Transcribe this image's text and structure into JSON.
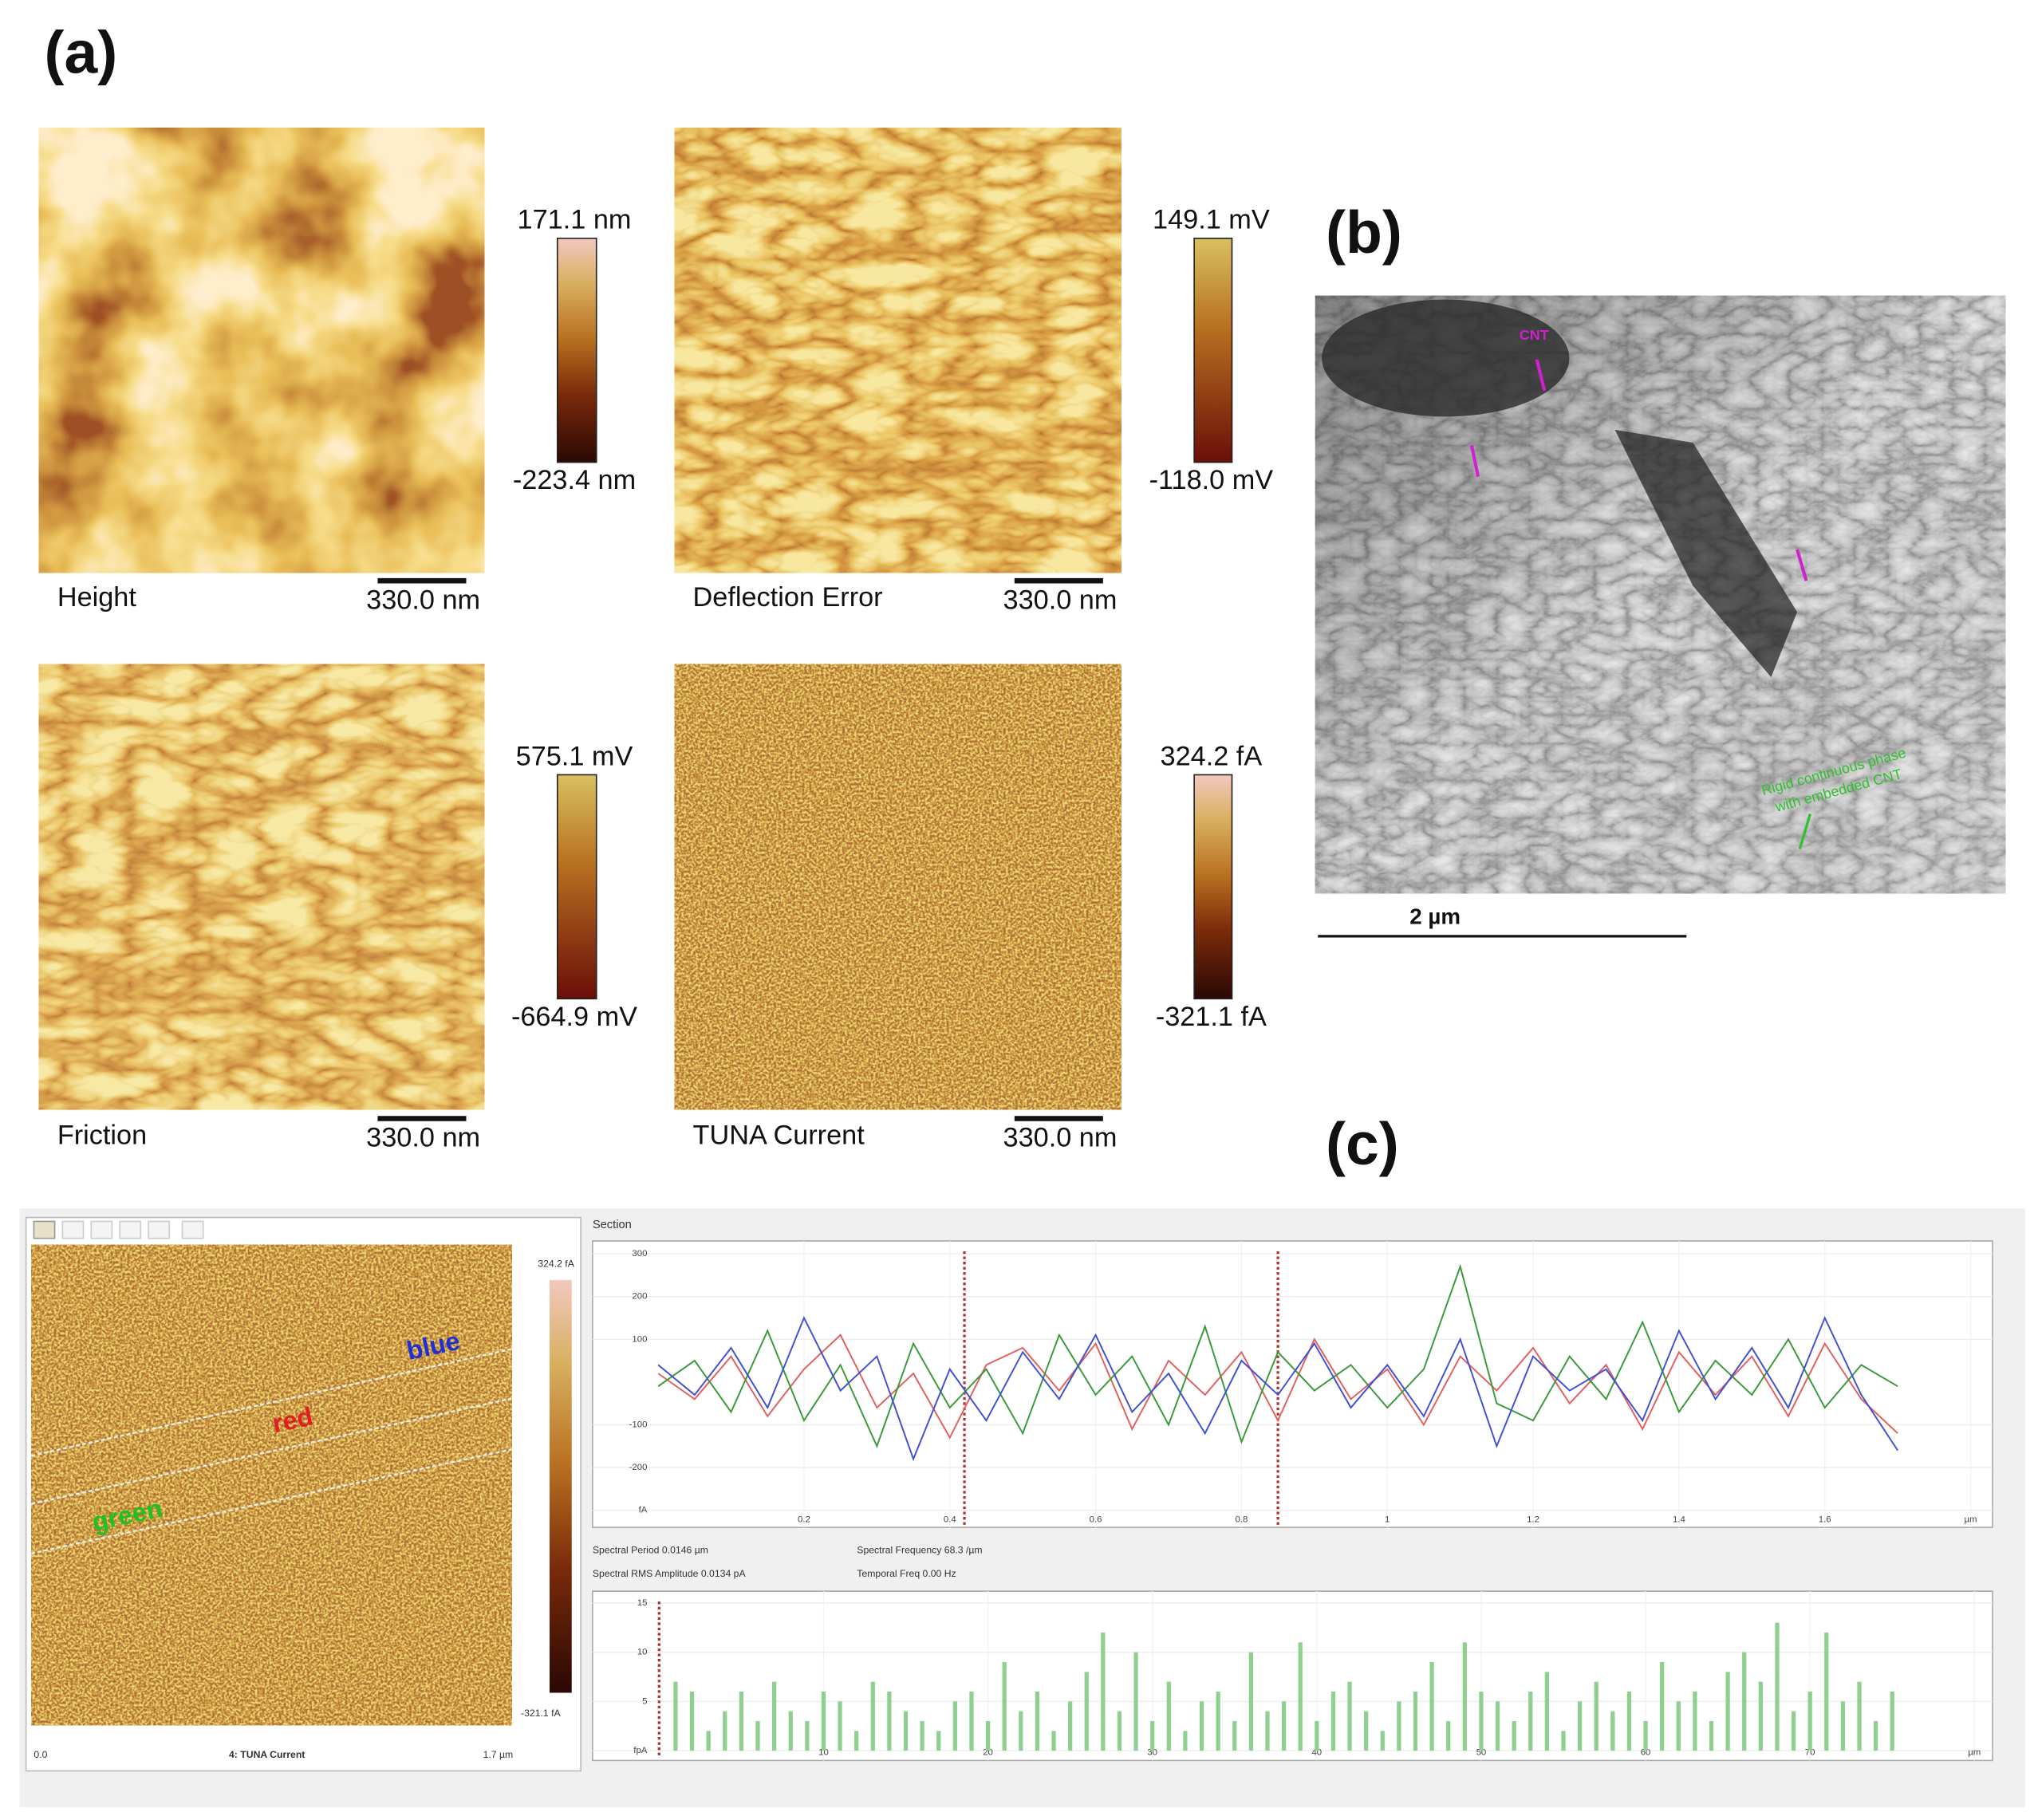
{
  "panel_labels": [
    "(a)",
    "(b)",
    "(c)"
  ],
  "afm_maps": [
    {
      "name": "Height",
      "max": "171.1 nm",
      "min": "-223.4 nm",
      "scale": "330.0 nm"
    },
    {
      "name": "Deflection Error",
      "max": "149.1 mV",
      "min": "-118.0 mV",
      "scale": "330.0 nm"
    },
    {
      "name": "Friction",
      "max": "575.1 mV",
      "min": "-664.9 mV",
      "scale": "330.0 nm"
    },
    {
      "name": "TUNA Current",
      "max": "324.2 fA",
      "min": "-321.1 fA",
      "scale": "330.0 nm"
    }
  ],
  "sem": {
    "annotations": [
      "CNT",
      "Rigid continuous phase",
      "with embedded CNT"
    ],
    "scale": "2 µm"
  },
  "tuna_view": {
    "colorbar_max": "324.2 fA",
    "colorbar_min": "-321.1 fA",
    "profile_labels": [
      "blue",
      "red",
      "green"
    ],
    "x_start": "0.0",
    "title": "4: TUNA Current",
    "x_end": "1.7 µm"
  },
  "section_title": "Section",
  "spectral_info": [
    "Spectral Period 0.0146 µm",
    "Spectral Frequency 68.3 /µm",
    "Spectral RMS Amplitude 0.0134 pA",
    "Temporal Freq 0.00 Hz"
  ],
  "chart_data": [
    {
      "type": "line",
      "x": [
        0,
        0.05,
        0.1,
        0.15,
        0.2,
        0.25,
        0.3,
        0.35,
        0.4,
        0.45,
        0.5,
        0.55,
        0.6,
        0.65,
        0.7,
        0.75,
        0.8,
        0.85,
        0.9,
        0.95,
        1.0,
        1.05,
        1.1,
        1.15,
        1.2,
        1.25,
        1.3,
        1.35,
        1.4,
        1.45,
        1.5,
        1.55,
        1.6,
        1.65,
        1.7
      ],
      "series": [
        {
          "color": "#e06060",
          "values": [
            20,
            -40,
            60,
            -80,
            30,
            110,
            -60,
            20,
            -130,
            40,
            80,
            -20,
            90,
            -110,
            50,
            -30,
            70,
            -90,
            100,
            -40,
            30,
            -100,
            60,
            -20,
            80,
            -50,
            40,
            -110,
            70,
            -30,
            60,
            -80,
            90,
            -40,
            -120
          ]
        },
        {
          "color": "#3a9a3a",
          "values": [
            -10,
            50,
            -70,
            120,
            -90,
            40,
            -150,
            90,
            -60,
            30,
            -120,
            110,
            -30,
            60,
            -100,
            130,
            -140,
            70,
            -20,
            40,
            -60,
            30,
            270,
            -50,
            -90,
            60,
            -40,
            140,
            -70,
            50,
            -30,
            100,
            -60,
            40,
            -10
          ]
        },
        {
          "color": "#4050d0",
          "values": [
            40,
            -30,
            80,
            -60,
            150,
            -20,
            60,
            -180,
            30,
            -90,
            70,
            -40,
            110,
            -70,
            20,
            -120,
            50,
            -30,
            90,
            -60,
            40,
            -80,
            100,
            -150,
            60,
            -20,
            30,
            -90,
            120,
            -40,
            80,
            -60,
            150,
            -30,
            -160
          ]
        }
      ],
      "cursors": [
        0.42,
        0.85
      ],
      "xlim": [
        -0.09,
        1.83
      ],
      "ylim": [
        -340,
        330
      ],
      "xticks": [
        0.2,
        0.4,
        0.6,
        0.8,
        1,
        1.2,
        1.4,
        1.6,
        {
          "value": 1.8,
          "label": "µm"
        }
      ],
      "yticks": [
        {
          "value": -300,
          "label": "fA"
        },
        -200,
        -100,
        100,
        200,
        300
      ],
      "grid": true
    },
    {
      "type": "bar",
      "x": [
        1,
        2,
        3,
        4,
        5,
        6,
        7,
        8,
        9,
        10,
        11,
        12,
        13,
        14,
        15,
        16,
        17,
        18,
        19,
        20,
        21,
        22,
        23,
        24,
        25,
        26,
        27,
        28,
        29,
        30,
        31,
        32,
        33,
        34,
        35,
        36,
        37,
        38,
        39,
        40,
        41,
        42,
        43,
        44,
        45,
        46,
        47,
        48,
        49,
        50,
        51,
        52,
        53,
        54,
        55,
        56,
        57,
        58,
        59,
        60,
        61,
        62,
        63,
        64,
        65,
        66,
        67,
        68,
        69,
        70,
        71,
        72,
        73,
        74,
        75
      ],
      "values": [
        7,
        6,
        2,
        4,
        6,
        3,
        7,
        4,
        3,
        6,
        5,
        2,
        7,
        6,
        4,
        3,
        2,
        5,
        6,
        3,
        9,
        4,
        6,
        2,
        5,
        8,
        12,
        4,
        10,
        3,
        7,
        2,
        5,
        6,
        3,
        10,
        4,
        5,
        11,
        3,
        6,
        7,
        4,
        2,
        5,
        6,
        9,
        3,
        11,
        6,
        5,
        3,
        6,
        8,
        2,
        5,
        7,
        4,
        6,
        3,
        9,
        5,
        6,
        3,
        8,
        10,
        7,
        13,
        4,
        6,
        12,
        5,
        7,
        3,
        6
      ],
      "color": "#8fcf8f",
      "cursors": [
        0
      ],
      "xlim": [
        -4.05,
        81.1
      ],
      "ylim": [
        -1,
        16.2
      ],
      "xticks": [
        10,
        20,
        30,
        40,
        50,
        60,
        70,
        {
          "value": 80,
          "label": "µm"
        }
      ],
      "yticks": [
        {
          "value": 0,
          "label": "fpA"
        },
        5,
        10,
        15
      ],
      "grid": true
    }
  ]
}
